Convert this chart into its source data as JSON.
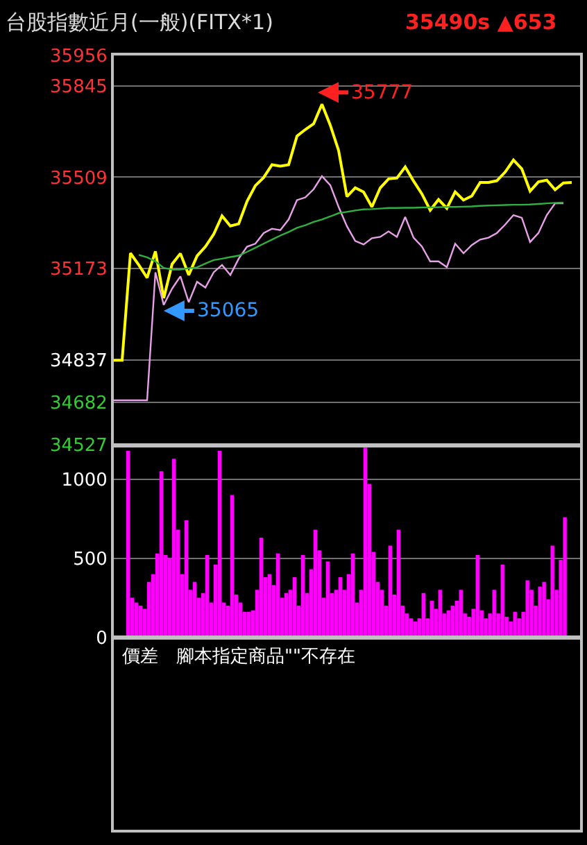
{
  "chart_data": [
    {
      "type": "line",
      "title": "台股指數近月(一般)(FITX*1)",
      "subtitle": "35490s ▲653",
      "categories": [
        null,
        null,
        null,
        null,
        null,
        null,
        null,
        null,
        null,
        null,
        null,
        null,
        null,
        null,
        null,
        null,
        null,
        null,
        null,
        null,
        null,
        null,
        null,
        null,
        null,
        null,
        null,
        null,
        null,
        null,
        null,
        null,
        null,
        null,
        null,
        null,
        null,
        null,
        null,
        null,
        null,
        null,
        null,
        null,
        null,
        null,
        null,
        null,
        null,
        null,
        null,
        null,
        null,
        null,
        null,
        null
      ],
      "ylim": [
        34527,
        35956
      ],
      "yticks": [
        35956,
        35845,
        35509,
        35173,
        34837,
        34682,
        34527
      ],
      "grid": "y",
      "tick_labels": "y",
      "marker": "none",
      "line_style": "solid",
      "series": [
        {
          "color": "#ffff00",
          "values": [
            34837,
            34837,
            35230,
            35187,
            35140,
            35237,
            35065,
            35190,
            35229,
            35150,
            35220,
            35254,
            35300,
            35367,
            35330,
            35338,
            35420,
            35478,
            35508,
            35555,
            35550,
            35555,
            35660,
            35684,
            35705,
            35777,
            35700,
            35607,
            35438,
            35470,
            35455,
            35400,
            35470,
            35503,
            35506,
            35547,
            35495,
            35448,
            35388,
            35427,
            35395,
            35455,
            35425,
            35440,
            35490,
            35490,
            35496,
            35528,
            35572,
            35540,
            35458,
            35492,
            35498,
            35463,
            35488,
            35490
          ]
        },
        {
          "color": "#e8a0e8",
          "values": [
            34690,
            34690,
            34690,
            34690,
            34690,
            35160,
            35040,
            35100,
            35145,
            35050,
            35125,
            35104,
            35160,
            35187,
            35150,
            35210,
            35254,
            35265,
            35304,
            35320,
            35315,
            35354,
            35425,
            35435,
            35465,
            35513,
            35480,
            35400,
            35329,
            35275,
            35262,
            35285,
            35290,
            35310,
            35290,
            35363,
            35287,
            35255,
            35200,
            35200,
            35179,
            35265,
            35230,
            35260,
            35280,
            35287,
            35304,
            35335,
            35370,
            35360,
            35271,
            35304,
            35370,
            35413,
            35413,
            null
          ]
        },
        {
          "color": "#30b040",
          "values": [
            null,
            null,
            null,
            35224,
            35215,
            35200,
            35176,
            35170,
            35170,
            35175,
            35178,
            35192,
            35205,
            35210,
            35216,
            35221,
            35235,
            35250,
            35265,
            35280,
            35295,
            35308,
            35323,
            35333,
            35345,
            35354,
            35365,
            35377,
            35382,
            35387,
            35391,
            35392,
            35394,
            35396,
            35396,
            35397,
            35397,
            35398,
            35398,
            35399,
            35400,
            35400,
            35401,
            35402,
            35404,
            35405,
            35406,
            35407,
            35408,
            35408,
            35409,
            35411,
            35413,
            35415,
            35416,
            null
          ]
        }
      ],
      "annotations": [
        "35777",
        "35065"
      ]
    },
    {
      "type": "bar",
      "categories": [
        null,
        null,
        null,
        null,
        null,
        null,
        null,
        null,
        null,
        null,
        null,
        null,
        null,
        null,
        null,
        null,
        null,
        null,
        null,
        null,
        null,
        null,
        null,
        null,
        null,
        null,
        null,
        null,
        null,
        null,
        null,
        null,
        null,
        null,
        null,
        null,
        null,
        null,
        null,
        null,
        null,
        null,
        null,
        null,
        null,
        null,
        null,
        null,
        null,
        null,
        null,
        null,
        null,
        null,
        null,
        null,
        null,
        null,
        null,
        null,
        null,
        null,
        null,
        null,
        null,
        null,
        null,
        null,
        null,
        null,
        null,
        null,
        null,
        null,
        null,
        null,
        null,
        null,
        null,
        null,
        null,
        null,
        null,
        null,
        null,
        null,
        null,
        null,
        null,
        null,
        null,
        null,
        null,
        null,
        null,
        null,
        null,
        null,
        null,
        null,
        null,
        null,
        null,
        null,
        null,
        null
      ],
      "ylim": [
        0,
        1210
      ],
      "yticks": [
        0,
        500,
        1000
      ],
      "grid": "y",
      "tick_labels": "y",
      "color": "#ff00ff",
      "values": [
        1180,
        250,
        220,
        200,
        180,
        350,
        400,
        530,
        1050,
        520,
        500,
        1130,
        680,
        400,
        740,
        300,
        350,
        250,
        280,
        520,
        220,
        460,
        1180,
        220,
        200,
        900,
        270,
        220,
        160,
        160,
        170,
        300,
        630,
        380,
        400,
        330,
        530,
        250,
        280,
        300,
        380,
        200,
        520,
        280,
        430,
        680,
        550,
        250,
        480,
        280,
        300,
        380,
        300,
        400,
        530,
        220,
        300,
        1200,
        970,
        540,
        350,
        300,
        200,
        580,
        270,
        680,
        200,
        150,
        120,
        100,
        120,
        280,
        120,
        230,
        180,
        300,
        150,
        170,
        200,
        230,
        300,
        150,
        130,
        180,
        520,
        170,
        120,
        150,
        300,
        150,
        460,
        130,
        100,
        160,
        120,
        160,
        360,
        300,
        200,
        320,
        350,
        240,
        580,
        300,
        490,
        760
      ]
    },
    {
      "type": "other",
      "annotations": [
        "價差　腳本指定商品\"\"不存在"
      ]
    }
  ]
}
